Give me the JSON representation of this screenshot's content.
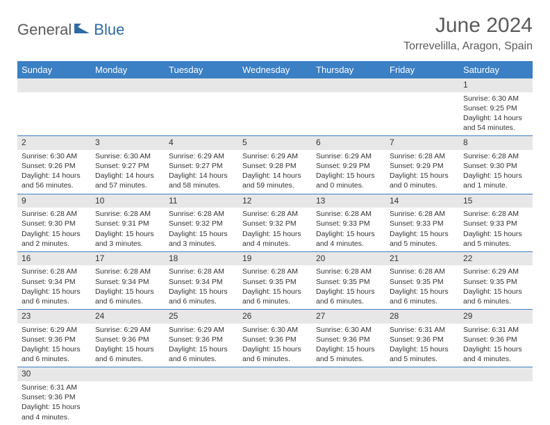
{
  "logo": {
    "part1": "General",
    "part2": "Blue"
  },
  "title": "June 2024",
  "location": "Torrevelilla, Aragon, Spain",
  "colors": {
    "header_bg": "#3b7fc4",
    "header_fg": "#ffffff",
    "daynum_bg": "#e7e7e7",
    "row_border": "#3b7fc4",
    "title_color": "#5a5a5a",
    "logo_blue": "#2d6aa8"
  },
  "weekdays": [
    "Sunday",
    "Monday",
    "Tuesday",
    "Wednesday",
    "Thursday",
    "Friday",
    "Saturday"
  ],
  "weeks": [
    [
      null,
      null,
      null,
      null,
      null,
      null,
      {
        "n": "1",
        "sr": "Sunrise: 6:30 AM",
        "ss": "Sunset: 9:25 PM",
        "dl": "Daylight: 14 hours and 54 minutes."
      }
    ],
    [
      {
        "n": "2",
        "sr": "Sunrise: 6:30 AM",
        "ss": "Sunset: 9:26 PM",
        "dl": "Daylight: 14 hours and 56 minutes."
      },
      {
        "n": "3",
        "sr": "Sunrise: 6:30 AM",
        "ss": "Sunset: 9:27 PM",
        "dl": "Daylight: 14 hours and 57 minutes."
      },
      {
        "n": "4",
        "sr": "Sunrise: 6:29 AM",
        "ss": "Sunset: 9:27 PM",
        "dl": "Daylight: 14 hours and 58 minutes."
      },
      {
        "n": "5",
        "sr": "Sunrise: 6:29 AM",
        "ss": "Sunset: 9:28 PM",
        "dl": "Daylight: 14 hours and 59 minutes."
      },
      {
        "n": "6",
        "sr": "Sunrise: 6:29 AM",
        "ss": "Sunset: 9:29 PM",
        "dl": "Daylight: 15 hours and 0 minutes."
      },
      {
        "n": "7",
        "sr": "Sunrise: 6:28 AM",
        "ss": "Sunset: 9:29 PM",
        "dl": "Daylight: 15 hours and 0 minutes."
      },
      {
        "n": "8",
        "sr": "Sunrise: 6:28 AM",
        "ss": "Sunset: 9:30 PM",
        "dl": "Daylight: 15 hours and 1 minute."
      }
    ],
    [
      {
        "n": "9",
        "sr": "Sunrise: 6:28 AM",
        "ss": "Sunset: 9:30 PM",
        "dl": "Daylight: 15 hours and 2 minutes."
      },
      {
        "n": "10",
        "sr": "Sunrise: 6:28 AM",
        "ss": "Sunset: 9:31 PM",
        "dl": "Daylight: 15 hours and 3 minutes."
      },
      {
        "n": "11",
        "sr": "Sunrise: 6:28 AM",
        "ss": "Sunset: 9:32 PM",
        "dl": "Daylight: 15 hours and 3 minutes."
      },
      {
        "n": "12",
        "sr": "Sunrise: 6:28 AM",
        "ss": "Sunset: 9:32 PM",
        "dl": "Daylight: 15 hours and 4 minutes."
      },
      {
        "n": "13",
        "sr": "Sunrise: 6:28 AM",
        "ss": "Sunset: 9:33 PM",
        "dl": "Daylight: 15 hours and 4 minutes."
      },
      {
        "n": "14",
        "sr": "Sunrise: 6:28 AM",
        "ss": "Sunset: 9:33 PM",
        "dl": "Daylight: 15 hours and 5 minutes."
      },
      {
        "n": "15",
        "sr": "Sunrise: 6:28 AM",
        "ss": "Sunset: 9:33 PM",
        "dl": "Daylight: 15 hours and 5 minutes."
      }
    ],
    [
      {
        "n": "16",
        "sr": "Sunrise: 6:28 AM",
        "ss": "Sunset: 9:34 PM",
        "dl": "Daylight: 15 hours and 6 minutes."
      },
      {
        "n": "17",
        "sr": "Sunrise: 6:28 AM",
        "ss": "Sunset: 9:34 PM",
        "dl": "Daylight: 15 hours and 6 minutes."
      },
      {
        "n": "18",
        "sr": "Sunrise: 6:28 AM",
        "ss": "Sunset: 9:34 PM",
        "dl": "Daylight: 15 hours and 6 minutes."
      },
      {
        "n": "19",
        "sr": "Sunrise: 6:28 AM",
        "ss": "Sunset: 9:35 PM",
        "dl": "Daylight: 15 hours and 6 minutes."
      },
      {
        "n": "20",
        "sr": "Sunrise: 6:28 AM",
        "ss": "Sunset: 9:35 PM",
        "dl": "Daylight: 15 hours and 6 minutes."
      },
      {
        "n": "21",
        "sr": "Sunrise: 6:28 AM",
        "ss": "Sunset: 9:35 PM",
        "dl": "Daylight: 15 hours and 6 minutes."
      },
      {
        "n": "22",
        "sr": "Sunrise: 6:29 AM",
        "ss": "Sunset: 9:35 PM",
        "dl": "Daylight: 15 hours and 6 minutes."
      }
    ],
    [
      {
        "n": "23",
        "sr": "Sunrise: 6:29 AM",
        "ss": "Sunset: 9:36 PM",
        "dl": "Daylight: 15 hours and 6 minutes."
      },
      {
        "n": "24",
        "sr": "Sunrise: 6:29 AM",
        "ss": "Sunset: 9:36 PM",
        "dl": "Daylight: 15 hours and 6 minutes."
      },
      {
        "n": "25",
        "sr": "Sunrise: 6:29 AM",
        "ss": "Sunset: 9:36 PM",
        "dl": "Daylight: 15 hours and 6 minutes."
      },
      {
        "n": "26",
        "sr": "Sunrise: 6:30 AM",
        "ss": "Sunset: 9:36 PM",
        "dl": "Daylight: 15 hours and 6 minutes."
      },
      {
        "n": "27",
        "sr": "Sunrise: 6:30 AM",
        "ss": "Sunset: 9:36 PM",
        "dl": "Daylight: 15 hours and 5 minutes."
      },
      {
        "n": "28",
        "sr": "Sunrise: 6:31 AM",
        "ss": "Sunset: 9:36 PM",
        "dl": "Daylight: 15 hours and 5 minutes."
      },
      {
        "n": "29",
        "sr": "Sunrise: 6:31 AM",
        "ss": "Sunset: 9:36 PM",
        "dl": "Daylight: 15 hours and 4 minutes."
      }
    ],
    [
      {
        "n": "30",
        "sr": "Sunrise: 6:31 AM",
        "ss": "Sunset: 9:36 PM",
        "dl": "Daylight: 15 hours and 4 minutes."
      },
      null,
      null,
      null,
      null,
      null,
      null
    ]
  ]
}
